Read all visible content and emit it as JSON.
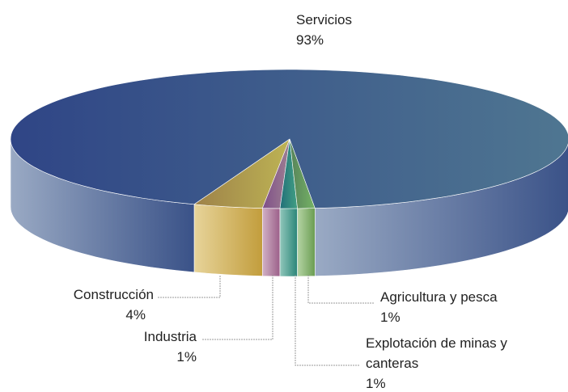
{
  "chart_data": {
    "type": "pie",
    "categories": [
      "Construcción",
      "Industria",
      "Explotación de minas y canteras",
      "Agricultura y pesca",
      "Servicios"
    ],
    "values": [
      4,
      1,
      1,
      1,
      93
    ],
    "value_labels": [
      "4%",
      "1%",
      "1%",
      "1%",
      "93%"
    ],
    "colors": [
      "#e8b830",
      "#b86a90",
      "#2a9a7a",
      "#7ab84a",
      "#3e5a8e"
    ]
  }
}
